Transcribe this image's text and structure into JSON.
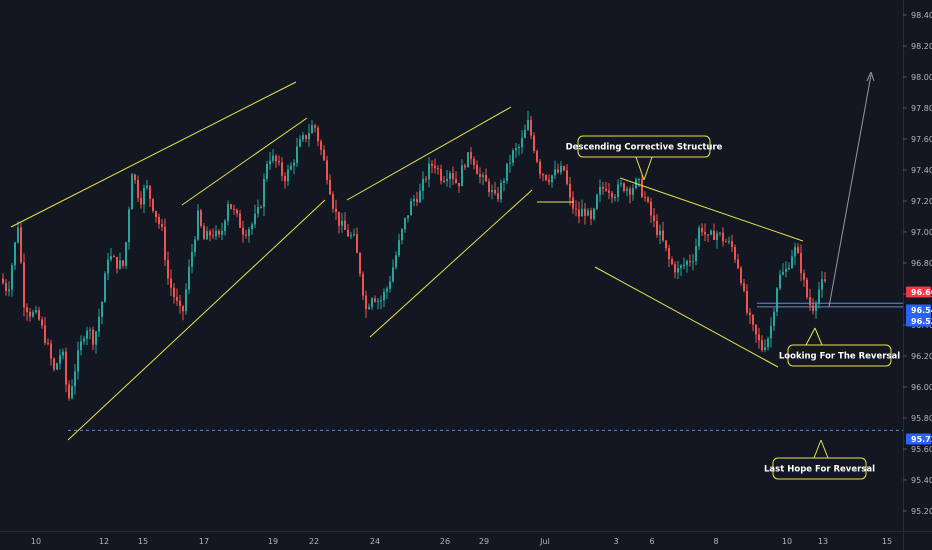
{
  "chart_data": {
    "type": "candlestick",
    "y_ticks": [
      "98.40",
      "98.20",
      "98.00",
      "97.80",
      "97.60",
      "97.40",
      "97.20",
      "97.00",
      "96.80",
      "96.60",
      "96.40",
      "96.20",
      "96.00",
      "95.80",
      "95.60",
      "95.40",
      "95.20"
    ],
    "ylim": [
      95.15,
      98.48
    ],
    "x_ticks": [
      "10",
      "12",
      "15",
      "17",
      "19",
      "22",
      "24",
      "26",
      "29",
      "Jul",
      "3",
      "6",
      "8",
      "10",
      "13",
      "15"
    ],
    "price_badges": [
      {
        "label": "96.66",
        "value": 96.66,
        "color": "#f23645"
      },
      {
        "label": "96.54",
        "value": 96.54,
        "color": "#2962ff"
      },
      {
        "label": "96.53",
        "value": 96.53,
        "color": "#2962ff"
      },
      {
        "label": "95.72",
        "value": 95.72,
        "color": "#2962ff"
      }
    ],
    "annotations": [
      {
        "text": "Descending Corrective Structure"
      },
      {
        "text": "Looking For The Reversal"
      },
      {
        "text": "Last Hope For Reversal"
      }
    ],
    "colors": {
      "up": "#26a69a",
      "down": "#ef5350",
      "trendline": "#e8e24a",
      "arrow": "#9598a1",
      "level": "#5d8dd6"
    },
    "grid": false,
    "last_close": 96.66
  }
}
